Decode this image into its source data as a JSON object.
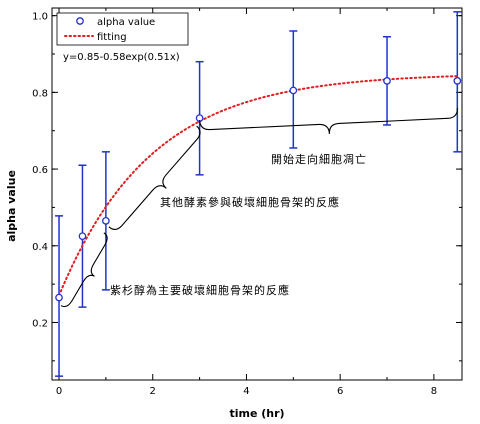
{
  "chart_data": {
    "type": "scatter",
    "x": [
      0,
      0.5,
      1,
      3,
      5,
      7,
      8.5
    ],
    "series": [
      {
        "name": "alpha value",
        "marker": "circle-open",
        "color": "#2233cc",
        "y": [
          0.265,
          0.425,
          0.465,
          0.733,
          0.805,
          0.83,
          0.83
        ],
        "err_low": [
          0.06,
          0.24,
          0.285,
          0.585,
          0.655,
          0.715,
          0.645
        ],
        "err_high": [
          0.478,
          0.61,
          0.645,
          0.88,
          0.96,
          0.945,
          1.01
        ]
      },
      {
        "name": "fitting",
        "line": "dotted",
        "color": "#e02020",
        "formula": "y=0.85-0.58exp(0.51x)",
        "a": 0.85,
        "b": 0.58,
        "k": 0.51
      }
    ],
    "xlabel": "time (hr)",
    "ylabel": "alpha value",
    "xlim": [
      -0.15,
      8.6
    ],
    "ylim": [
      0.05,
      1.02
    ],
    "xticks": [
      0,
      2,
      4,
      6,
      8
    ],
    "yticks": [
      0.2,
      0.4,
      0.6,
      0.8,
      1.0
    ],
    "xtick_labels": [
      "0",
      "2",
      "4",
      "6",
      "8"
    ],
    "ytick_labels": [
      "0.2",
      "0.4",
      "0.6",
      "0.8",
      "1.0"
    ],
    "equation_text": "y=0.85-0.58exp(0.51x)",
    "legend": {
      "position": "top-left",
      "entries": [
        "alpha value",
        "fitting"
      ]
    },
    "annotations": [
      {
        "text": "紫杉醇為主要破壞細胞骨架的反應",
        "brace_from": 0,
        "brace_to": 1
      },
      {
        "text": "其他酵素參與破壞細胞骨架的反應",
        "brace_from": 1,
        "brace_to": 3
      },
      {
        "text": "開始走向細胞凋亡",
        "brace_from": 3,
        "brace_to": 8.5
      }
    ],
    "grid": false
  }
}
